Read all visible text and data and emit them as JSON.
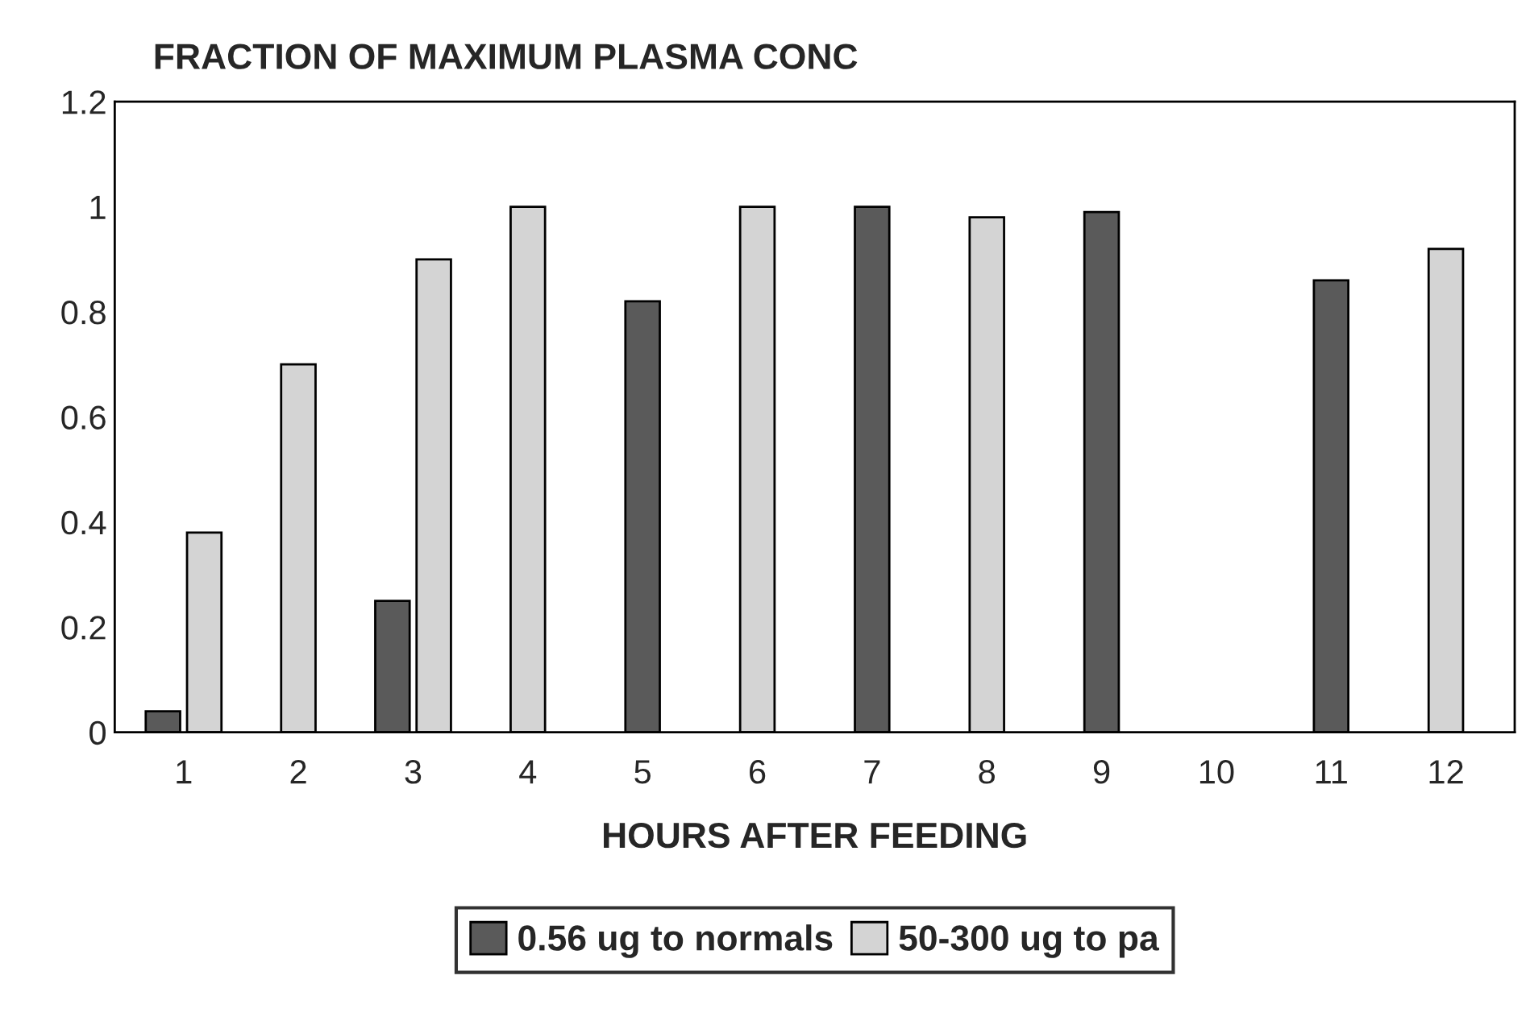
{
  "chart_data": {
    "type": "bar",
    "title": "FRACTION OF MAXIMUM PLASMA CONC",
    "xlabel": "HOURS AFTER FEEDING",
    "categories": [
      "1",
      "2",
      "3",
      "4",
      "5",
      "6",
      "7",
      "8",
      "9",
      "10",
      "11",
      "12"
    ],
    "series": [
      {
        "name": "0.56 ug to normals",
        "color": "#5a5a5a",
        "values": [
          0.04,
          null,
          0.25,
          null,
          0.82,
          null,
          1.0,
          null,
          0.99,
          null,
          0.86,
          null
        ]
      },
      {
        "name": "50-300 ug to pa",
        "color": "#d4d4d4",
        "values": [
          0.38,
          0.7,
          0.9,
          1.0,
          null,
          1.0,
          null,
          0.98,
          null,
          null,
          null,
          0.92
        ]
      }
    ],
    "ylim": [
      0,
      1.2
    ],
    "yticks": [
      0,
      0.2,
      0.4,
      0.6,
      0.8,
      1,
      1.2
    ],
    "grid": false,
    "legend": "bottom"
  }
}
